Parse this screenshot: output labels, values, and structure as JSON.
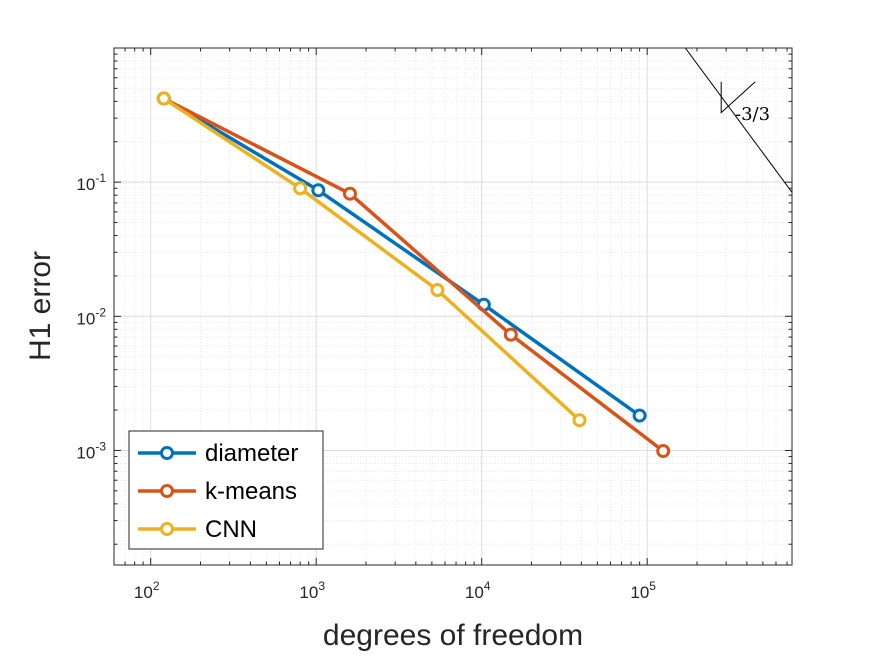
{
  "chart_data": {
    "type": "line",
    "xlabel": "degrees of freedom",
    "ylabel": "H1 error",
    "xscale": "log",
    "yscale": "log",
    "xlim": [
      60,
      750000
    ],
    "ylim": [
      0.00014,
      1.0
    ],
    "grid": true,
    "x_ticks": [
      {
        "value": 100,
        "base": "10",
        "exp": "2"
      },
      {
        "value": 1000,
        "base": "10",
        "exp": "3"
      },
      {
        "value": 10000,
        "base": "10",
        "exp": "4"
      },
      {
        "value": 100000,
        "base": "10",
        "exp": "5"
      }
    ],
    "y_ticks": [
      {
        "value": 0.001,
        "base": "10",
        "exp": "-3"
      },
      {
        "value": 0.01,
        "base": "10",
        "exp": "-2"
      },
      {
        "value": 0.1,
        "base": "10",
        "exp": "-1"
      }
    ],
    "legend_position": "bottom-left",
    "series": [
      {
        "name": "diameter",
        "color": "#0072BD",
        "x": [
          120,
          1030,
          10300,
          90000
        ],
        "y": [
          0.42,
          0.087,
          0.0122,
          0.00182
        ]
      },
      {
        "name": "k-means",
        "color": "#D95319",
        "x": [
          120,
          1600,
          15000,
          125000
        ],
        "y": [
          0.42,
          0.082,
          0.0073,
          0.00099
        ]
      },
      {
        "name": "CNN",
        "color": "#EDB120",
        "x": [
          120,
          800,
          5400,
          39000
        ],
        "y": [
          0.42,
          0.09,
          0.0157,
          0.00168
        ]
      }
    ],
    "slope_indicator": {
      "label": "-3/3",
      "line_x": [
        170000,
        750000
      ],
      "line_y": [
        1.0,
        0.084
      ],
      "triangle_x": [
        280000,
        280000,
        450000
      ],
      "triangle_y": [
        0.56,
        0.33,
        0.56
      ]
    }
  }
}
